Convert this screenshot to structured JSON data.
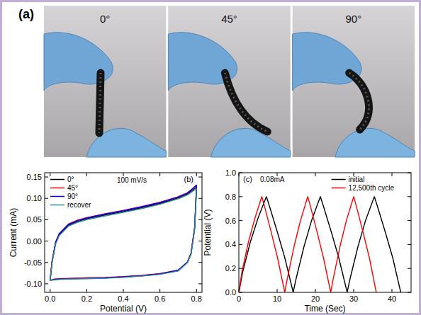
{
  "panel_a": {
    "panel_label": "(a)",
    "photo_labels": [
      "0°",
      "45°",
      "90°"
    ]
  },
  "chart_data": [
    {
      "type": "line",
      "panel_label": "(b)",
      "annotation": "100 mV/s",
      "x_label": "Potential (V)",
      "y_label": "Current (mA)",
      "x": [
        0,
        0.01,
        0.03,
        0.05,
        0.1,
        0.15,
        0.2,
        0.3,
        0.4,
        0.5,
        0.6,
        0.7,
        0.75,
        0.8,
        0.79,
        0.77,
        0.75,
        0.7,
        0.6,
        0.5,
        0.4,
        0.3,
        0.2,
        0.1,
        0.05,
        0.02,
        0
      ],
      "series": [
        {
          "name": "0°",
          "color": "#000000",
          "values": [
            -0.092,
            -0.05,
            -0.005,
            0.015,
            0.037,
            0.046,
            0.052,
            0.061,
            0.069,
            0.078,
            0.088,
            0.101,
            0.11,
            0.126,
            0.03,
            -0.03,
            -0.05,
            -0.069,
            -0.077,
            -0.081,
            -0.084,
            -0.086,
            -0.087,
            -0.088,
            -0.089,
            -0.09,
            -0.092
          ]
        },
        {
          "name": "45°",
          "color": "#ff0000",
          "values": [
            -0.092,
            -0.048,
            -0.002,
            0.018,
            0.04,
            0.049,
            0.055,
            0.064,
            0.072,
            0.081,
            0.091,
            0.104,
            0.113,
            0.13,
            0.033,
            -0.028,
            -0.049,
            -0.068,
            -0.076,
            -0.08,
            -0.083,
            -0.085,
            -0.086,
            -0.087,
            -0.088,
            -0.089,
            -0.092
          ]
        },
        {
          "name": "90°",
          "color": "#0000ff",
          "values": [
            -0.092,
            -0.049,
            -0.003,
            0.017,
            0.039,
            0.048,
            0.054,
            0.063,
            0.071,
            0.08,
            0.09,
            0.103,
            0.112,
            0.131,
            0.032,
            -0.029,
            -0.049,
            -0.068,
            -0.077,
            -0.081,
            -0.084,
            -0.086,
            -0.087,
            -0.088,
            -0.089,
            -0.09,
            -0.092
          ]
        },
        {
          "name": "recover",
          "color": "#2a8c8c",
          "values": [
            -0.092,
            -0.051,
            -0.007,
            0.013,
            0.035,
            0.044,
            0.05,
            0.059,
            0.067,
            0.076,
            0.086,
            0.099,
            0.108,
            0.123,
            0.028,
            -0.031,
            -0.051,
            -0.07,
            -0.078,
            -0.082,
            -0.085,
            -0.087,
            -0.088,
            -0.089,
            -0.09,
            -0.091,
            -0.092
          ]
        }
      ],
      "xlim": [
        -0.03,
        0.83
      ],
      "xticks": [
        {
          "value": 0,
          "label": "0.0"
        },
        0.2,
        0.4,
        0.6,
        0.8
      ],
      "ylim": [
        -0.12,
        0.16
      ],
      "yticks": [
        {
          "value": -0.1,
          "label": "-0.10"
        },
        -0.05,
        {
          "value": 0,
          "label": "0.00"
        },
        0.05,
        {
          "value": 0.1,
          "label": "0.10"
        },
        0.15
      ],
      "legend": "top-left",
      "grid": false
    },
    {
      "type": "line",
      "panel_label": "(c)",
      "annotation": "0.08mA",
      "x_label": "Time (Sec)",
      "y_label": "Potential (V)",
      "series": [
        {
          "name": "initial",
          "color": "#000000",
          "x": [
            0,
            1,
            3,
            5,
            7.2,
            8,
            10,
            12,
            14.2,
            15,
            17,
            19,
            21.3,
            22.1,
            24.1,
            26.1,
            28.3,
            29.1,
            31.1,
            33.1,
            35.4,
            36.2,
            38.2,
            40.2,
            42.3
          ],
          "values": [
            0,
            0.17,
            0.42,
            0.62,
            0.8,
            0.72,
            0.51,
            0.29,
            0,
            0.12,
            0.38,
            0.6,
            0.8,
            0.72,
            0.51,
            0.29,
            0,
            0.12,
            0.38,
            0.6,
            0.8,
            0.72,
            0.51,
            0.29,
            0
          ]
        },
        {
          "name": "12,500th cycle",
          "color": "#ff0000",
          "x": [
            0,
            0.8,
            2.5,
            4.2,
            6,
            6.7,
            8.4,
            10.1,
            12,
            12.7,
            14.4,
            16.1,
            18,
            18.7,
            20.4,
            22.1,
            24,
            24.7,
            26.4,
            28.1,
            30,
            30.7,
            32.4,
            34.1,
            35.9
          ],
          "values": [
            0,
            0.17,
            0.42,
            0.62,
            0.8,
            0.72,
            0.51,
            0.29,
            0,
            0.12,
            0.38,
            0.6,
            0.8,
            0.72,
            0.51,
            0.29,
            0,
            0.12,
            0.38,
            0.6,
            0.8,
            0.72,
            0.51,
            0.29,
            0
          ]
        }
      ],
      "xlim": [
        0,
        45
      ],
      "xticks": [
        0,
        10,
        20,
        30,
        40
      ],
      "ylim": [
        0,
        1.0
      ],
      "yticks": [
        {
          "value": 0,
          "label": "0.0"
        },
        0.2,
        0.4,
        0.6,
        0.8,
        {
          "value": 1.0,
          "label": "1.0"
        }
      ],
      "legend": "top-right",
      "grid": false
    }
  ]
}
